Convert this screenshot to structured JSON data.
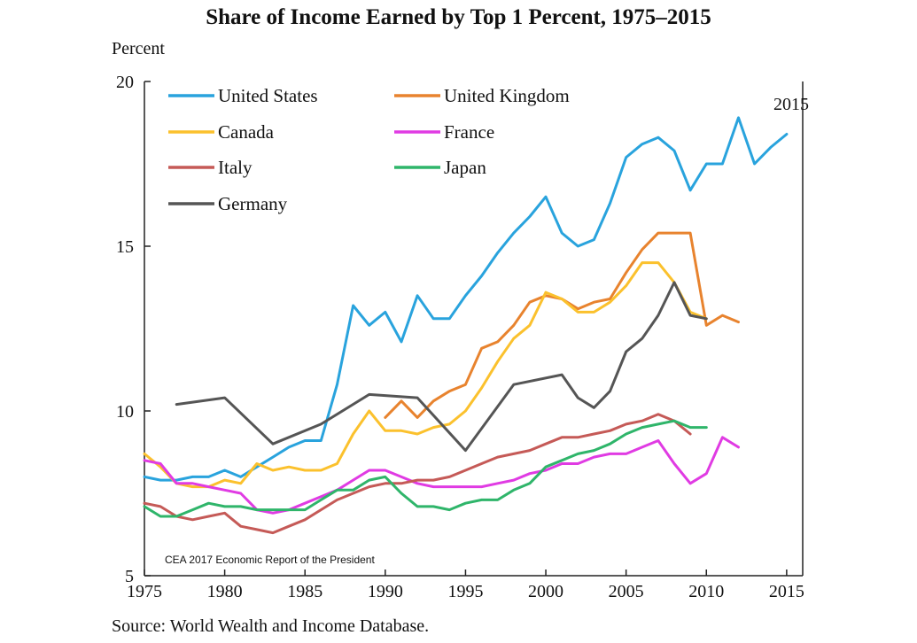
{
  "chart_data": {
    "type": "line",
    "title": "Share of Income Earned by Top 1 Percent, 1975–2015",
    "ylabel": "Percent",
    "xlabel": "",
    "xlim": [
      1975,
      2016
    ],
    "ylim": [
      5,
      20
    ],
    "x_ticks": [
      "1975",
      "1980",
      "1985",
      "1990",
      "1995",
      "2000",
      "2005",
      "2010",
      "2015"
    ],
    "y_ticks": [
      "5",
      "10",
      "15",
      "20"
    ],
    "grid": false,
    "legend_position": "top-left",
    "annotation": "2015",
    "note": "CEA 2017 Economic Report of the President",
    "source": "Source: World Wealth and Income Database.",
    "series": [
      {
        "name": "United States",
        "color": "#29a3dd",
        "x": [
          1975,
          1976,
          1977,
          1978,
          1979,
          1980,
          1981,
          1982,
          1983,
          1984,
          1985,
          1986,
          1987,
          1988,
          1989,
          1990,
          1991,
          1992,
          1993,
          1994,
          1995,
          1996,
          1997,
          1998,
          1999,
          2000,
          2001,
          2002,
          2003,
          2004,
          2005,
          2006,
          2007,
          2008,
          2009,
          2010,
          2011,
          2012,
          2013,
          2014,
          2015
        ],
        "values": [
          8.0,
          7.9,
          7.9,
          8.0,
          8.0,
          8.2,
          8.0,
          8.3,
          8.6,
          8.9,
          9.1,
          9.1,
          10.8,
          13.2,
          12.6,
          13.0,
          12.1,
          13.5,
          12.8,
          12.8,
          13.5,
          14.1,
          14.8,
          15.4,
          15.9,
          16.5,
          15.4,
          15.0,
          15.2,
          16.3,
          17.7,
          18.1,
          18.3,
          17.9,
          16.7,
          17.5,
          17.5,
          18.9,
          17.5,
          18.0,
          18.4
        ]
      },
      {
        "name": "United Kingdom",
        "color": "#e8832e",
        "x": [
          1990,
          1991,
          1992,
          1993,
          1994,
          1995,
          1996,
          1997,
          1998,
          1999,
          2000,
          2001,
          2002,
          2003,
          2004,
          2005,
          2006,
          2007,
          2008,
          2009,
          2010,
          2011,
          2012
        ],
        "values": [
          9.8,
          10.3,
          9.8,
          10.3,
          10.6,
          10.8,
          11.9,
          12.1,
          12.6,
          13.3,
          13.5,
          13.4,
          13.1,
          13.3,
          13.4,
          14.2,
          14.9,
          15.4,
          15.4,
          15.4,
          12.6,
          12.9,
          12.7
        ]
      },
      {
        "name": "Canada",
        "color": "#fbc12d",
        "x": [
          1975,
          1976,
          1977,
          1978,
          1979,
          1980,
          1981,
          1982,
          1983,
          1984,
          1985,
          1986,
          1987,
          1988,
          1989,
          1990,
          1991,
          1992,
          1993,
          1994,
          1995,
          1996,
          1997,
          1998,
          1999,
          2000,
          2001,
          2002,
          2003,
          2004,
          2005,
          2006,
          2007,
          2008,
          2009,
          2010
        ],
        "values": [
          8.7,
          8.3,
          7.8,
          7.7,
          7.7,
          7.9,
          7.8,
          8.4,
          8.2,
          8.3,
          8.2,
          8.2,
          8.4,
          9.3,
          10.0,
          9.4,
          9.4,
          9.3,
          9.5,
          9.6,
          10.0,
          10.7,
          11.5,
          12.2,
          12.6,
          13.6,
          13.4,
          13.0,
          13.0,
          13.3,
          13.8,
          14.5,
          14.5,
          13.9,
          13.0,
          12.8
        ]
      },
      {
        "name": "France",
        "color": "#e03be3",
        "x": [
          1975,
          1976,
          1977,
          1978,
          1979,
          1980,
          1981,
          1982,
          1983,
          1984,
          1985,
          1986,
          1987,
          1988,
          1989,
          1990,
          1991,
          1992,
          1993,
          1994,
          1995,
          1996,
          1997,
          1998,
          1999,
          2000,
          2001,
          2002,
          2003,
          2004,
          2005,
          2006,
          2007,
          2008,
          2009,
          2010,
          2011,
          2012
        ],
        "values": [
          8.5,
          8.4,
          7.8,
          7.8,
          7.7,
          7.6,
          7.5,
          7.0,
          6.9,
          7.0,
          7.2,
          7.4,
          7.6,
          7.9,
          8.2,
          8.2,
          8.0,
          7.8,
          7.7,
          7.7,
          7.7,
          7.7,
          7.8,
          7.9,
          8.1,
          8.2,
          8.4,
          8.4,
          8.6,
          8.7,
          8.7,
          8.9,
          9.1,
          8.4,
          7.8,
          8.1,
          9.2,
          8.9
        ]
      },
      {
        "name": "Italy",
        "color": "#c55a57",
        "x": [
          1975,
          1976,
          1977,
          1978,
          1979,
          1980,
          1981,
          1982,
          1983,
          1984,
          1985,
          1986,
          1987,
          1988,
          1989,
          1990,
          1991,
          1992,
          1993,
          1994,
          1995,
          1996,
          1997,
          1998,
          1999,
          2000,
          2001,
          2002,
          2003,
          2004,
          2005,
          2006,
          2007,
          2008,
          2009
        ],
        "values": [
          7.2,
          7.1,
          6.8,
          6.7,
          6.8,
          6.9,
          6.5,
          6.4,
          6.3,
          6.5,
          6.7,
          7.0,
          7.3,
          7.5,
          7.7,
          7.8,
          7.8,
          7.9,
          7.9,
          8.0,
          8.2,
          8.4,
          8.6,
          8.7,
          8.8,
          9.0,
          9.2,
          9.2,
          9.3,
          9.4,
          9.6,
          9.7,
          9.9,
          9.7,
          9.3
        ]
      },
      {
        "name": "Japan",
        "color": "#2fb56a",
        "x": [
          1975,
          1976,
          1977,
          1978,
          1979,
          1980,
          1981,
          1982,
          1983,
          1984,
          1985,
          1986,
          1987,
          1988,
          1989,
          1990,
          1991,
          1992,
          1993,
          1994,
          1995,
          1996,
          1997,
          1998,
          1999,
          2000,
          2001,
          2002,
          2003,
          2004,
          2005,
          2006,
          2007,
          2008,
          2009,
          2010
        ],
        "values": [
          7.1,
          6.8,
          6.8,
          7.0,
          7.2,
          7.1,
          7.1,
          7.0,
          7.0,
          7.0,
          7.0,
          7.3,
          7.6,
          7.6,
          7.9,
          8.0,
          7.5,
          7.1,
          7.1,
          7.0,
          7.2,
          7.3,
          7.3,
          7.6,
          7.8,
          8.3,
          8.5,
          8.7,
          8.8,
          9.0,
          9.3,
          9.5,
          9.6,
          9.7,
          9.5,
          9.5
        ]
      },
      {
        "name": "Germany",
        "color": "#555555",
        "x": [
          1977,
          1980,
          1983,
          1986,
          1989,
          1992,
          1995,
          1998,
          2001,
          2002,
          2003,
          2004,
          2005,
          2006,
          2007,
          2008,
          2009,
          2010
        ],
        "values": [
          10.2,
          10.4,
          9.0,
          9.6,
          10.5,
          10.4,
          8.8,
          10.8,
          11.1,
          10.4,
          10.1,
          10.6,
          11.8,
          12.2,
          12.9,
          13.9,
          12.9,
          12.8
        ]
      }
    ]
  }
}
